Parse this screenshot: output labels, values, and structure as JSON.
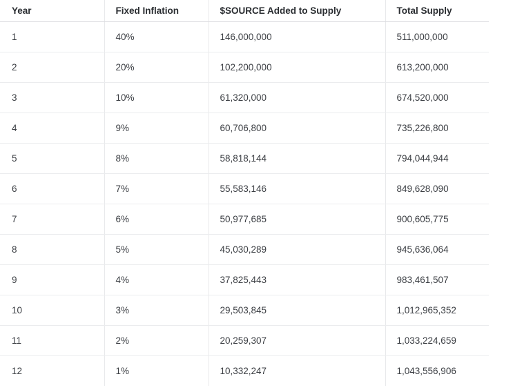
{
  "table": {
    "headers": [
      "Year",
      "Fixed Inflation",
      "$SOURCE Added to Supply",
      "Total Supply"
    ],
    "rows": [
      [
        "1",
        "40%",
        "146,000,000",
        "511,000,000"
      ],
      [
        "2",
        "20%",
        "102,200,000",
        "613,200,000"
      ],
      [
        "3",
        "10%",
        "61,320,000",
        "674,520,000"
      ],
      [
        "4",
        "9%",
        "60,706,800",
        "735,226,800"
      ],
      [
        "5",
        "8%",
        "58,818,144",
        "794,044,944"
      ],
      [
        "6",
        "7%",
        "55,583,146",
        "849,628,090"
      ],
      [
        "7",
        "6%",
        "50,977,685",
        "900,605,775"
      ],
      [
        "8",
        "5%",
        "45,030,289",
        "945,636,064"
      ],
      [
        "9",
        "4%",
        "37,825,443",
        "983,461,507"
      ],
      [
        "10",
        "3%",
        "29,503,845",
        "1,012,965,352"
      ],
      [
        "11",
        "2%",
        "20,259,307",
        "1,033,224,659"
      ],
      [
        "12",
        "1%",
        "10,332,247",
        "1,043,556,906"
      ]
    ]
  }
}
